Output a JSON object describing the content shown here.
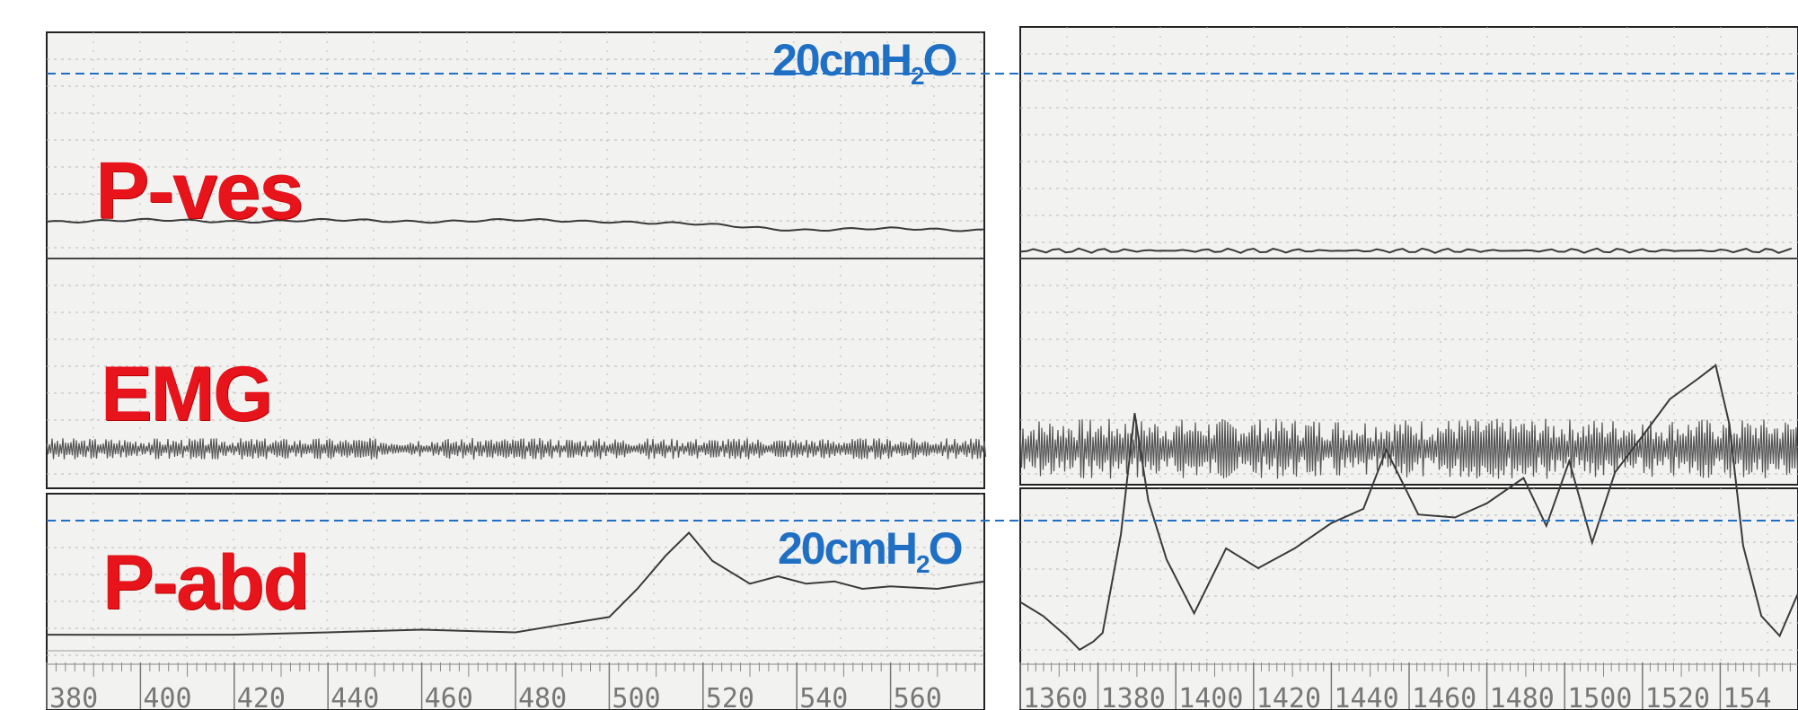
{
  "trace_labels": {
    "pves": "P-ves",
    "emg": "EMG",
    "pabd": "P-abd"
  },
  "reference_line": {
    "value": "20",
    "unit_prefix": "cmH",
    "unit_subscript": "2",
    "unit_suffix": "O",
    "color": "#1f6fc4"
  },
  "colors": {
    "label": "#e8141c",
    "trace": "#3a3a3a",
    "paper": "#f2f2f1",
    "grid": "#b9b9b9"
  },
  "chart_data": [
    {
      "type": "line",
      "panel": "left",
      "x_axis_ticks": [
        "380",
        "400",
        "420",
        "440",
        "460",
        "480",
        "500",
        "520",
        "540",
        "560"
      ],
      "x_range": [
        380,
        580
      ],
      "series": [
        {
          "name": "P-ves",
          "x": [
            380,
            400,
            420,
            440,
            460,
            480,
            500,
            520,
            540,
            560,
            580
          ],
          "y": [
            2,
            2,
            2,
            2,
            2,
            2,
            2,
            1.5,
            1,
            1,
            1
          ]
        },
        {
          "name": "EMG",
          "x": [
            380,
            580
          ],
          "y": [
            0,
            0
          ],
          "note_amplitude": "low"
        },
        {
          "name": "P-abd",
          "x": [
            380,
            400,
            420,
            440,
            460,
            480,
            490,
            500,
            506,
            512,
            517,
            522,
            530,
            536,
            542,
            548,
            554,
            560,
            570,
            580
          ],
          "y": [
            2,
            2.5,
            2,
            3,
            3,
            3,
            4,
            6,
            11,
            18,
            22,
            17,
            12,
            14,
            12,
            13,
            11,
            12,
            11,
            13
          ]
        }
      ]
    },
    {
      "type": "line",
      "panel": "right",
      "x_axis_ticks": [
        "1360",
        "1380",
        "1400",
        "1420",
        "1440",
        "1460",
        "1480",
        "1500",
        "1520",
        "154"
      ],
      "x_range": [
        1360,
        1530
      ],
      "series": [
        {
          "name": "P-ves",
          "x": [
            1360,
            1400,
            1440,
            1480,
            1530
          ],
          "y": [
            1,
            1,
            1,
            1,
            1
          ]
        },
        {
          "name": "EMG",
          "x": [
            1360,
            1530
          ],
          "y": [
            0,
            0
          ],
          "note_amplitude": "high"
        },
        {
          "name": "P-abd",
          "x": [
            1360,
            1365,
            1370,
            1373,
            1376,
            1378,
            1382,
            1385,
            1388,
            1392,
            1398,
            1405,
            1412,
            1420,
            1428,
            1435,
            1440,
            1447,
            1455,
            1462,
            1470,
            1475,
            1480,
            1485,
            1490,
            1497,
            1502,
            1508,
            1512,
            1515,
            1518,
            1522,
            1526,
            1530
          ],
          "y": [
            10,
            8,
            4,
            2,
            3,
            5,
            22,
            44,
            28,
            18,
            8,
            20,
            16,
            20,
            24,
            27,
            37,
            26,
            25,
            28,
            32,
            24,
            35,
            21,
            33,
            41,
            46,
            50,
            52,
            42,
            20,
            8,
            4,
            12
          ]
        }
      ]
    }
  ]
}
